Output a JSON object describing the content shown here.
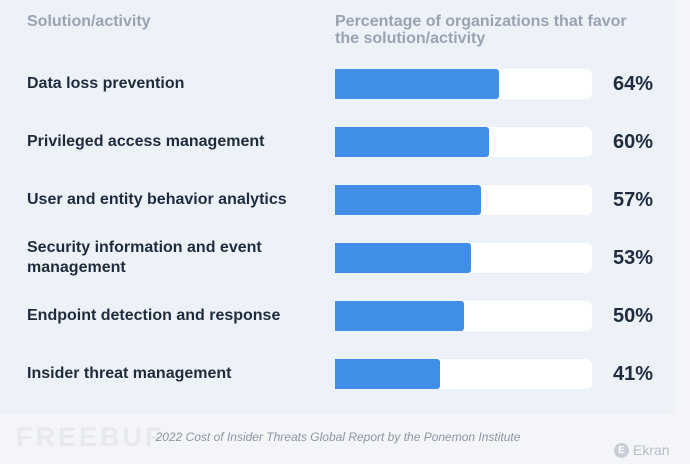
{
  "chart_data": {
    "type": "bar",
    "orientation": "horizontal",
    "column_headers": {
      "category": "Solution/activity",
      "value": "Percentage of organizations that favor the solution/activity"
    },
    "value_unit": "%",
    "xlim": [
      0,
      100
    ],
    "grid": false,
    "legend": "none",
    "categories": [
      "Data loss prevention",
      "Privileged access management",
      "User and entity behavior analytics",
      "Security information and event management",
      "Endpoint detection and response",
      "Insider threat management"
    ],
    "values": [
      64,
      60,
      57,
      53,
      50,
      41
    ],
    "value_labels": [
      "64%",
      "60%",
      "57%",
      "53%",
      "50%",
      "41%"
    ],
    "source": "2022 Cost of Insider Threats Global Report by the Ponemon Institute"
  },
  "colors": {
    "bar": "#3f8ee8",
    "track": "#ffffff",
    "text": "#1f2c3d",
    "header": "#9aa3b1"
  },
  "watermark": "FREEBUF",
  "brand": {
    "icon": "ekran-logo-icon",
    "name": "Ekran"
  }
}
